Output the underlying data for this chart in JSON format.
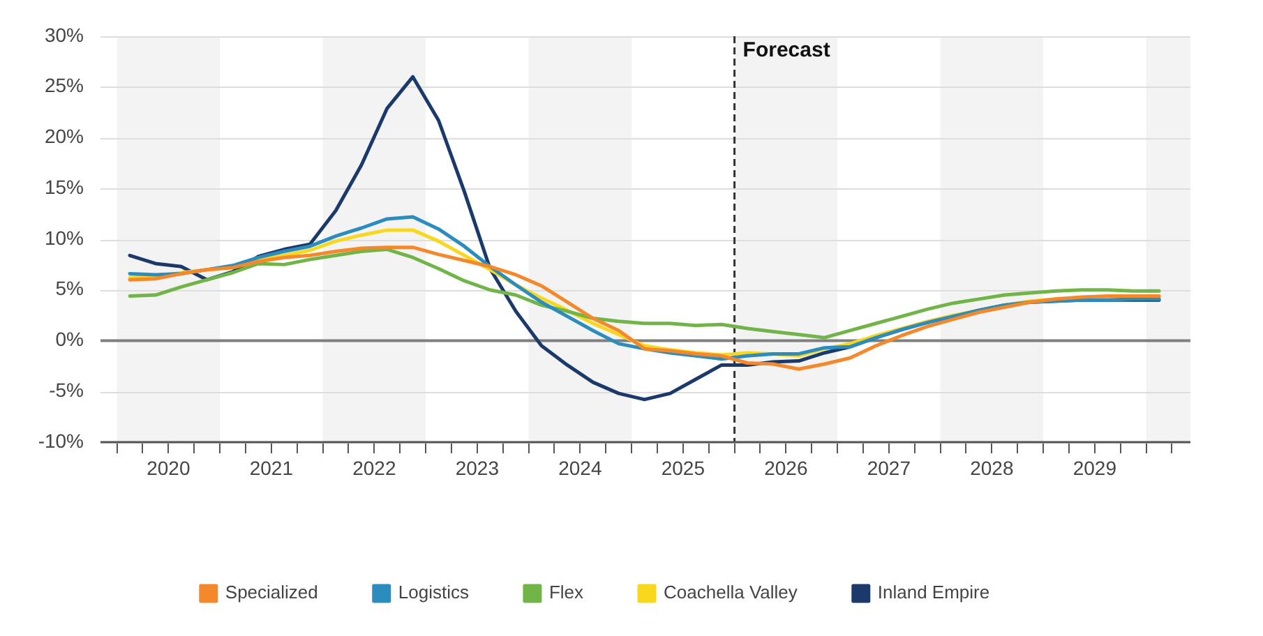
{
  "chart_data": {
    "type": "line",
    "x": [
      2020.125,
      2020.375,
      2020.625,
      2020.875,
      2021.125,
      2021.375,
      2021.625,
      2021.875,
      2022.125,
      2022.375,
      2022.625,
      2022.875,
      2023.125,
      2023.375,
      2023.625,
      2023.875,
      2024.125,
      2024.375,
      2024.625,
      2024.875,
      2025.125,
      2025.375,
      2025.625,
      2025.875,
      2026.125,
      2026.375,
      2026.625,
      2026.875,
      2027.125,
      2027.375,
      2027.625,
      2027.875,
      2028.125,
      2028.375,
      2028.625,
      2028.875,
      2029.125,
      2029.375,
      2029.625,
      2029.875,
      2030.125
    ],
    "series": [
      {
        "name": "Specialized",
        "color": "#f4882a",
        "values": [
          6.0,
          6.1,
          6.6,
          7.0,
          7.2,
          7.8,
          8.2,
          8.4,
          8.8,
          9.1,
          9.2,
          9.2,
          8.5,
          7.9,
          7.3,
          6.5,
          5.4,
          3.8,
          2.2,
          1.0,
          -0.8,
          -1.0,
          -1.3,
          -1.5,
          -2.2,
          -2.3,
          -2.8,
          -2.3,
          -1.7,
          -0.5,
          0.5,
          1.4,
          2.1,
          2.8,
          3.3,
          3.8,
          4.1,
          4.3,
          4.4,
          4.4,
          4.4
        ]
      },
      {
        "name": "Logistics",
        "color": "#2b8cbe",
        "values": [
          6.6,
          6.5,
          6.6,
          7.0,
          7.4,
          8.2,
          8.8,
          9.3,
          10.3,
          11.1,
          12.0,
          12.2,
          11.0,
          9.3,
          7.3,
          5.5,
          3.8,
          2.4,
          1.0,
          -0.3,
          -0.8,
          -1.2,
          -1.5,
          -1.8,
          -1.5,
          -1.3,
          -1.3,
          -0.7,
          -0.6,
          0.3,
          1.1,
          1.8,
          2.4,
          3.0,
          3.5,
          3.8,
          3.9,
          4.0,
          4.0,
          4.1,
          4.1
        ]
      },
      {
        "name": "Flex",
        "color": "#71b548",
        "values": [
          4.4,
          4.5,
          5.3,
          6.0,
          6.7,
          7.6,
          7.5,
          8.0,
          8.4,
          8.8,
          9.0,
          8.2,
          7.1,
          5.9,
          5.0,
          4.5,
          3.5,
          2.9,
          2.2,
          1.9,
          1.7,
          1.7,
          1.5,
          1.6,
          1.2,
          0.9,
          0.6,
          0.3,
          1.0,
          1.7,
          2.4,
          3.1,
          3.7,
          4.1,
          4.5,
          4.7,
          4.9,
          5.0,
          5.0,
          4.9,
          4.9
        ]
      },
      {
        "name": "Coachella Valley",
        "color": "#f9d71c",
        "values": [
          6.2,
          6.3,
          6.7,
          7.0,
          7.2,
          8.0,
          8.4,
          8.9,
          9.8,
          10.4,
          10.9,
          10.9,
          9.8,
          8.4,
          7.0,
          5.5,
          4.2,
          3.0,
          1.7,
          0.6,
          -0.5,
          -0.9,
          -1.2,
          -1.4,
          -1.2,
          -1.3,
          -1.5,
          -0.8,
          -0.3,
          0.5,
          1.2,
          1.9,
          2.5,
          3.0,
          3.5,
          3.9,
          4.1,
          4.2,
          4.3,
          4.3,
          4.3
        ]
      },
      {
        "name": "Inland Empire",
        "color": "#1b3a6b",
        "values": [
          8.4,
          7.6,
          7.3,
          6.0,
          6.8,
          8.3,
          9.0,
          9.5,
          12.8,
          17.3,
          22.9,
          26.0,
          21.7,
          14.7,
          7.1,
          2.9,
          -0.5,
          -2.4,
          -4.1,
          -5.2,
          -5.8,
          -5.2,
          -3.8,
          -2.4,
          -2.4,
          -2.1,
          -2.0,
          -1.2,
          -0.6,
          0.3,
          1.1,
          1.8,
          2.4,
          3.0,
          3.5,
          3.8,
          3.9,
          4.0,
          4.0,
          4.0,
          4.0
        ]
      }
    ],
    "xlim": [
      2019.84,
      2030.43
    ],
    "xticks": [
      {
        "value": 2020,
        "label": null
      },
      {
        "value": 2020.25,
        "label": null
      },
      {
        "value": 2020.5,
        "label": "2020"
      },
      {
        "value": 2020.75,
        "label": null
      },
      {
        "value": 2021,
        "label": null
      },
      {
        "value": 2021.25,
        "label": null
      },
      {
        "value": 2021.5,
        "label": "2021"
      },
      {
        "value": 2021.75,
        "label": null
      },
      {
        "value": 2022,
        "label": null
      },
      {
        "value": 2022.25,
        "label": null
      },
      {
        "value": 2022.5,
        "label": "2022"
      },
      {
        "value": 2022.75,
        "label": null
      },
      {
        "value": 2023,
        "label": null
      },
      {
        "value": 2023.25,
        "label": null
      },
      {
        "value": 2023.5,
        "label": "2023"
      },
      {
        "value": 2023.75,
        "label": null
      },
      {
        "value": 2024,
        "label": null
      },
      {
        "value": 2024.25,
        "label": null
      },
      {
        "value": 2024.5,
        "label": "2024"
      },
      {
        "value": 2024.75,
        "label": null
      },
      {
        "value": 2025,
        "label": null
      },
      {
        "value": 2025.25,
        "label": null
      },
      {
        "value": 2025.5,
        "label": "2025"
      },
      {
        "value": 2025.75,
        "label": null
      },
      {
        "value": 2026,
        "label": null
      },
      {
        "value": 2026.25,
        "label": null
      },
      {
        "value": 2026.5,
        "label": "2026"
      },
      {
        "value": 2026.75,
        "label": null
      },
      {
        "value": 2027,
        "label": null
      },
      {
        "value": 2027.25,
        "label": null
      },
      {
        "value": 2027.5,
        "label": "2027"
      },
      {
        "value": 2027.75,
        "label": null
      },
      {
        "value": 2028,
        "label": null
      },
      {
        "value": 2028.25,
        "label": null
      },
      {
        "value": 2028.5,
        "label": "2028"
      },
      {
        "value": 2028.75,
        "label": null
      },
      {
        "value": 2029,
        "label": null
      },
      {
        "value": 2029.25,
        "label": null
      },
      {
        "value": 2029.5,
        "label": "2029"
      },
      {
        "value": 2029.75,
        "label": null
      },
      {
        "value": 2030,
        "label": null
      },
      {
        "value": 2030.25,
        "label": null
      }
    ],
    "ylim": [
      -10,
      30
    ],
    "yticks": [
      {
        "value": -10,
        "label": "-10%"
      },
      {
        "value": -5,
        "label": "-5%"
      },
      {
        "value": 0,
        "label": "0%"
      },
      {
        "value": 5,
        "label": "5%"
      },
      {
        "value": 10,
        "label": "10%"
      },
      {
        "value": 15,
        "label": "15%"
      },
      {
        "value": 20,
        "label": "20%"
      },
      {
        "value": 25,
        "label": "25%"
      },
      {
        "value": 30,
        "label": "30%"
      }
    ],
    "grid": "y",
    "legend": "bottom",
    "marker": "none",
    "line_style": "solid",
    "ref_lines": [
      {
        "axis": "y",
        "value": 0,
        "label": null,
        "color": "#7f7f7f",
        "line_style": "solid"
      },
      {
        "axis": "x",
        "value": 2026,
        "label": "Forecast",
        "color": "#333333",
        "line_style": "dashed"
      }
    ],
    "bands": [
      {
        "axis": "x",
        "from": 2020,
        "to": 2021,
        "label": null,
        "color": "#f3f3f3"
      },
      {
        "axis": "x",
        "from": 2022,
        "to": 2023,
        "label": null,
        "color": "#f3f3f3"
      },
      {
        "axis": "x",
        "from": 2024,
        "to": 2025,
        "label": null,
        "color": "#f3f3f3"
      },
      {
        "axis": "x",
        "from": 2026,
        "to": 2027,
        "label": null,
        "color": "#f3f3f3"
      },
      {
        "axis": "x",
        "from": 2028,
        "to": 2029,
        "label": null,
        "color": "#f3f3f3"
      },
      {
        "axis": "x",
        "from": 2030,
        "to": 2030.43,
        "label": null,
        "color": "#f3f3f3"
      }
    ]
  }
}
